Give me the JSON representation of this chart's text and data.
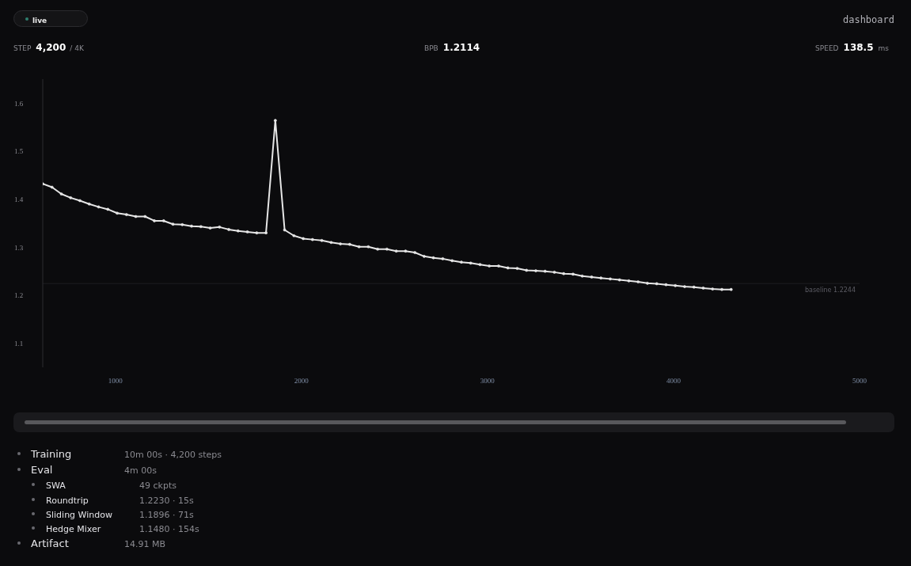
{
  "chart_data": {
    "type": "line",
    "x": [
      610,
      660,
      710,
      760,
      810,
      860,
      910,
      960,
      1010,
      1060,
      1110,
      1160,
      1210,
      1260,
      1310,
      1360,
      1410,
      1460,
      1510,
      1560,
      1610,
      1660,
      1710,
      1760,
      1810,
      1860,
      1910,
      1960,
      2010,
      2060,
      2110,
      2160,
      2210,
      2260,
      2310,
      2360,
      2410,
      2460,
      2510,
      2560,
      2610,
      2660,
      2710,
      2760,
      2810,
      2860,
      2910,
      2960,
      3010,
      3060,
      3110,
      3160,
      3210,
      3260,
      3310,
      3360,
      3410,
      3460,
      3510,
      3560,
      3610,
      3660,
      3710,
      3760,
      3810,
      3860,
      3910,
      3960,
      4010,
      4060,
      4110,
      4160,
      4210,
      4260,
      4310
    ],
    "series": [
      {
        "color": "#e6e6e6",
        "values": [
          1.432,
          1.425,
          1.411,
          1.403,
          1.397,
          1.39,
          1.384,
          1.379,
          1.371,
          1.368,
          1.364,
          1.364,
          1.355,
          1.355,
          1.348,
          1.347,
          1.344,
          1.343,
          1.34,
          1.342,
          1.337,
          1.334,
          1.332,
          1.33,
          1.33,
          1.564,
          1.336,
          1.324,
          1.318,
          1.316,
          1.314,
          1.31,
          1.307,
          1.306,
          1.301,
          1.301,
          1.296,
          1.296,
          1.292,
          1.292,
          1.289,
          1.281,
          1.278,
          1.276,
          1.272,
          1.269,
          1.267,
          1.264,
          1.261,
          1.261,
          1.257,
          1.256,
          1.252,
          1.251,
          1.25,
          1.248,
          1.245,
          1.244,
          1.24,
          1.238,
          1.236,
          1.234,
          1.232,
          1.23,
          1.228,
          1.225,
          1.224,
          1.222,
          1.22,
          1.218,
          1.217,
          1.215,
          1.213,
          1.212,
          1.212
        ]
      }
    ],
    "xlim": [
      610,
      5000
    ],
    "xticks": [
      1000,
      2000,
      3000,
      4000,
      5000
    ],
    "ylim": [
      1.05,
      1.65
    ],
    "yticks": [
      1.1,
      1.2,
      1.3,
      1.4,
      1.5,
      1.6
    ],
    "grid": false,
    "marker": "circle",
    "line_style": "solid",
    "ref_lines": [
      {
        "axis": "y",
        "value": 1.2244,
        "label": "baseline 1.2244",
        "color": "#1e1e22"
      }
    ],
    "annotations": [
      "live",
      "dashboard",
      "STEP",
      "4,200",
      "/ 4K",
      "BPB",
      "1.2114",
      "SPEED",
      "138.5",
      "ms",
      "Training",
      "10m 00s · 4,200 steps",
      "Eval",
      "4m 00s",
      "SWA",
      "49 ckpts",
      "Roundtrip",
      "1.2230 · 15s",
      "Sliding Window",
      "1.1896 · 71s",
      "Hedge Mixer",
      "1.1480 · 154s",
      "Artifact",
      "14.91 MB"
    ]
  }
}
